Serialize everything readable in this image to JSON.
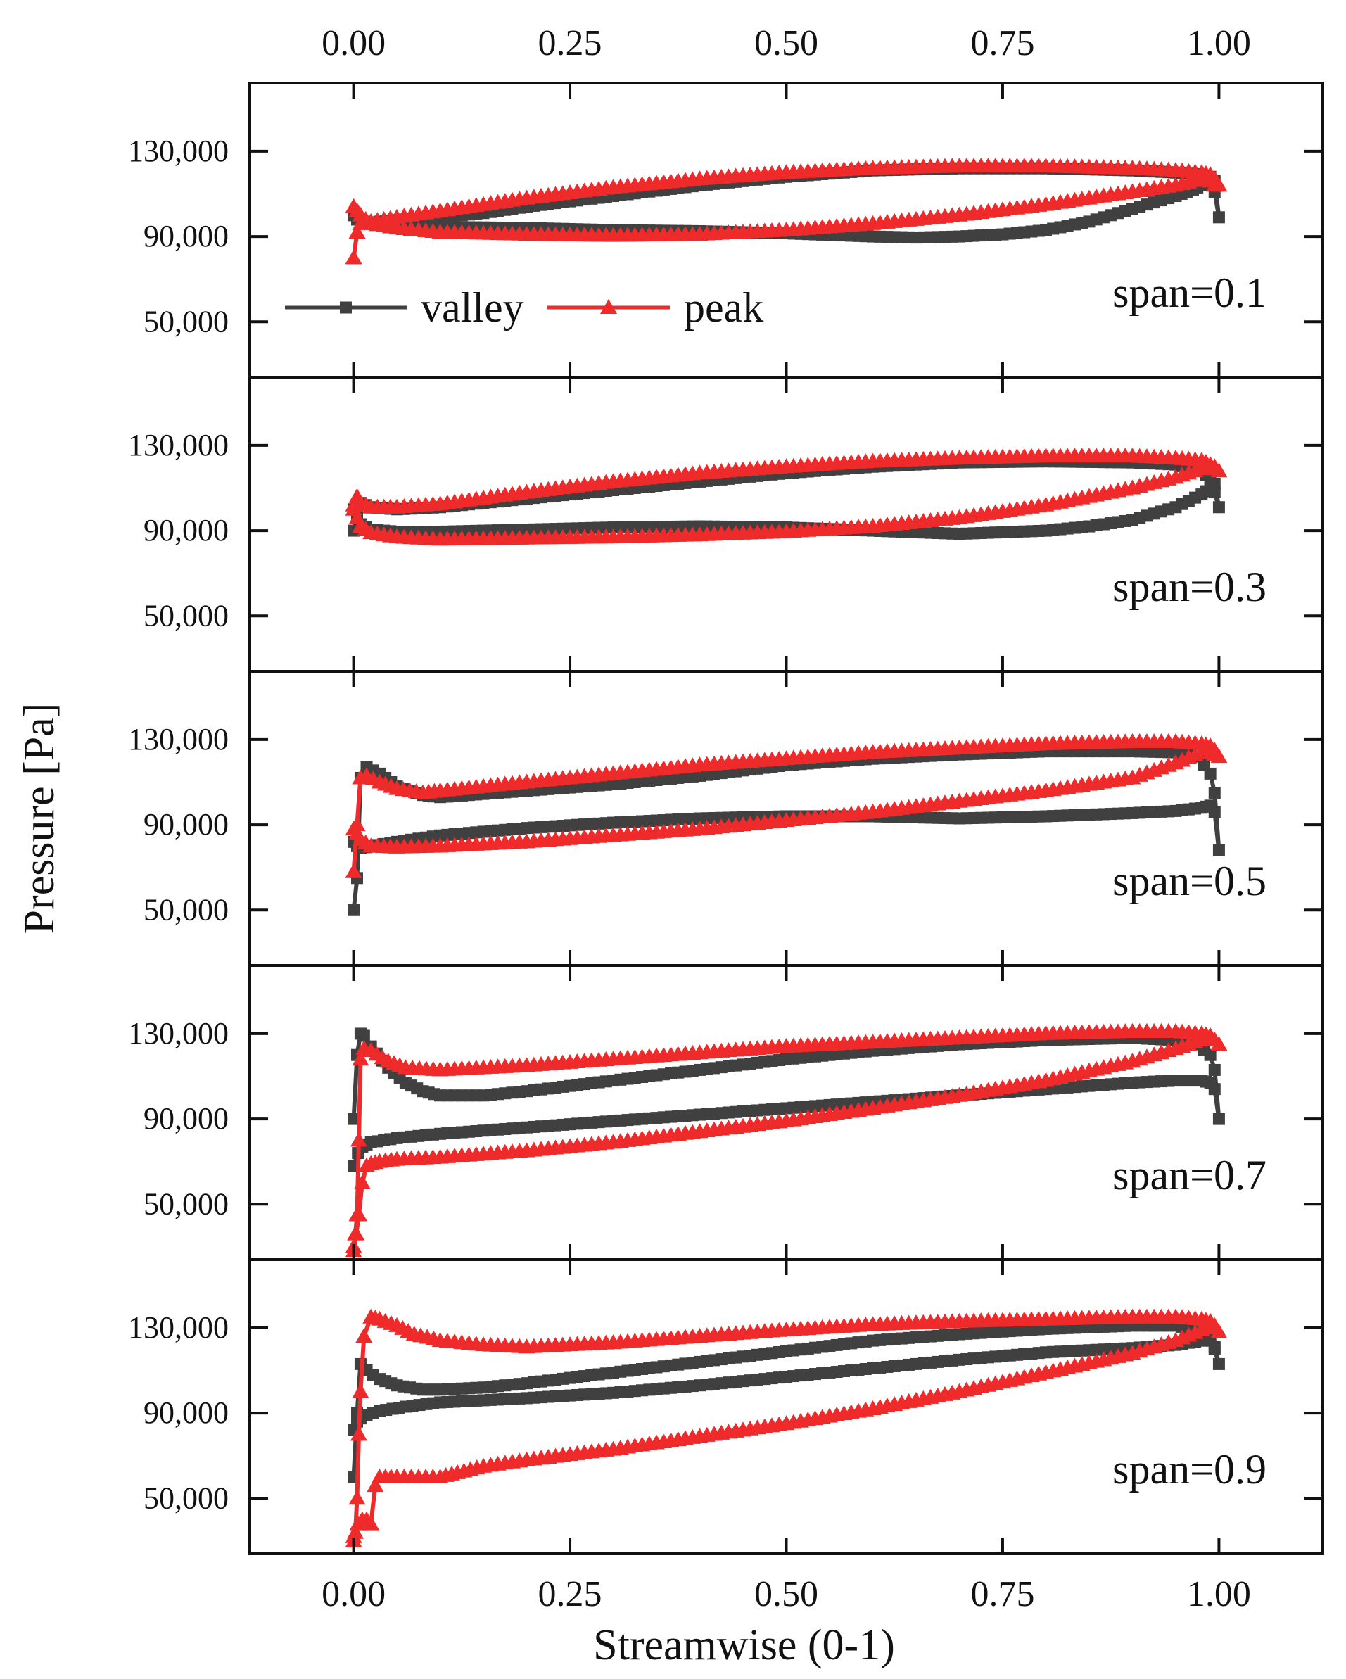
{
  "chart_data": {
    "type": "line",
    "xlabel": "Streamwise (0-1)",
    "ylabel": "Pressure [Pa]",
    "xlim": [
      -0.12,
      1.12
    ],
    "ylim": [
      24000,
      162000
    ],
    "xticks": [
      0.0,
      0.25,
      0.5,
      0.75,
      1.0
    ],
    "xtick_labels": [
      "0.00",
      "0.25",
      "0.50",
      "0.75",
      "1.00"
    ],
    "yticks": [
      50000,
      90000,
      130000
    ],
    "ytick_labels": [
      "50,000",
      "90,000",
      "130,000"
    ],
    "grid": false,
    "legend": {
      "placement": "inside-left of top panel",
      "entries": [
        {
          "name": "valley",
          "color": "#404040",
          "marker": "square"
        },
        {
          "name": "peak",
          "color": "#ee2a2a",
          "marker": "triangle"
        }
      ]
    },
    "colors": {
      "valley": "#404040",
      "peak": "#ee2a2a"
    },
    "panels": [
      {
        "label": "span=0.1",
        "series": [
          {
            "name": "valley",
            "x": [
              0.0,
              0.004,
              0.008,
              0.01,
              0.03,
              0.06,
              0.1,
              0.15,
              0.2,
              0.3,
              0.4,
              0.5,
              0.6,
              0.7,
              0.8,
              0.9,
              0.95,
              0.98,
              0.99,
              0.995,
              1.0,
              0.995,
              0.99,
              0.98,
              0.97,
              0.95,
              0.9,
              0.85,
              0.8,
              0.75,
              0.7,
              0.65,
              0.6,
              0.5,
              0.4,
              0.3,
              0.2,
              0.1,
              0.05,
              0.02,
              0.008,
              0.004,
              0.0
            ],
            "y": [
              100000,
              98000,
              96000,
              96000,
              97000,
              98000,
              99000,
              101000,
              104000,
              109000,
              114000,
              118000,
              121000,
              122000,
              122000,
              121000,
              120000,
              119000,
              118000,
              116000,
              99000,
              111000,
              114000,
              114000,
              112000,
              109000,
              103000,
              97000,
              93000,
              91000,
              90000,
              89500,
              90000,
              91500,
              92500,
              93000,
              94000,
              94500,
              95000,
              96000,
              97000,
              98000,
              100000
            ]
          },
          {
            "name": "peak",
            "x": [
              0.0,
              0.004,
              0.008,
              0.02,
              0.05,
              0.1,
              0.15,
              0.2,
              0.3,
              0.4,
              0.5,
              0.6,
              0.7,
              0.8,
              0.9,
              0.95,
              0.98,
              0.99,
              0.995,
              1.0,
              0.995,
              0.99,
              0.98,
              0.95,
              0.9,
              0.85,
              0.8,
              0.7,
              0.6,
              0.5,
              0.4,
              0.3,
              0.2,
              0.1,
              0.05,
              0.02,
              0.008,
              0.004,
              0.0
            ],
            "y": [
              80000,
              92000,
              96000,
              97000,
              99000,
              102000,
              105000,
              108000,
              113000,
              117000,
              120000,
              122000,
              123000,
              123000,
              122000,
              121000,
              120000,
              119000,
              117000,
              114000,
              114000,
              116000,
              117000,
              114000,
              111000,
              108000,
              105000,
              100000,
              96000,
              93000,
              91000,
              90500,
              91000,
              92000,
              94000,
              96000,
              100000,
              102000,
              104000
            ]
          }
        ]
      },
      {
        "label": "span=0.3",
        "series": [
          {
            "name": "valley",
            "x": [
              0.0,
              0.004,
              0.008,
              0.02,
              0.05,
              0.1,
              0.2,
              0.3,
              0.4,
              0.5,
              0.6,
              0.7,
              0.8,
              0.9,
              0.95,
              0.98,
              0.99,
              0.995,
              1.0,
              0.995,
              0.99,
              0.98,
              0.95,
              0.9,
              0.85,
              0.8,
              0.7,
              0.6,
              0.5,
              0.4,
              0.3,
              0.2,
              0.1,
              0.05,
              0.02,
              0.008,
              0.004,
              0.0
            ],
            "y": [
              90000,
              100000,
              103000,
              101000,
              100000,
              101000,
              105000,
              109000,
              113000,
              117000,
              120000,
              122000,
              122500,
              122000,
              121000,
              118000,
              114000,
              112000,
              101000,
              108000,
              110000,
              107000,
              101000,
              95000,
              92000,
              90000,
              88500,
              90000,
              91500,
              92000,
              91500,
              90500,
              89500,
              89500,
              90500,
              93000,
              96000,
              100000
            ]
          },
          {
            "name": "peak",
            "x": [
              0.0,
              0.004,
              0.008,
              0.02,
              0.05,
              0.1,
              0.2,
              0.3,
              0.4,
              0.5,
              0.6,
              0.7,
              0.8,
              0.9,
              0.95,
              0.98,
              0.99,
              0.995,
              1.0,
              0.995,
              0.99,
              0.98,
              0.95,
              0.9,
              0.8,
              0.7,
              0.6,
              0.5,
              0.4,
              0.3,
              0.2,
              0.1,
              0.05,
              0.02,
              0.008,
              0.004,
              0.0
            ],
            "y": [
              102000,
              106000,
              103000,
              101000,
              101000,
              102500,
              108000,
              113000,
              117000,
              120000,
              122500,
              124000,
              125000,
              125000,
              124000,
              123000,
              121000,
              120000,
              118000,
              119000,
              120000,
              119000,
              115000,
              110000,
              102000,
              96000,
              92000,
              89500,
              88000,
              87000,
              86500,
              86000,
              87000,
              89000,
              92000,
              96000,
              100000
            ]
          }
        ]
      },
      {
        "label": "span=0.5",
        "series": [
          {
            "name": "valley",
            "x": [
              0.0,
              0.004,
              0.008,
              0.015,
              0.03,
              0.05,
              0.08,
              0.1,
              0.2,
              0.3,
              0.4,
              0.5,
              0.6,
              0.7,
              0.8,
              0.9,
              0.95,
              0.975,
              0.99,
              0.995,
              1.0,
              0.995,
              0.99,
              0.98,
              0.95,
              0.9,
              0.8,
              0.7,
              0.6,
              0.5,
              0.4,
              0.3,
              0.2,
              0.1,
              0.05,
              0.02,
              0.008,
              0.004,
              0.0
            ],
            "y": [
              50000,
              65000,
              112000,
              117000,
              114000,
              108000,
              104000,
              103000,
              106000,
              109000,
              113000,
              118000,
              121000,
              123000,
              124500,
              124500,
              124000,
              122000,
              114000,
              105000,
              78000,
              96000,
              99000,
              98000,
              96500,
              95500,
              94000,
              93000,
              94000,
              94000,
              93000,
              91000,
              88500,
              85000,
              82000,
              80000,
              79000,
              80000,
              82000
            ]
          },
          {
            "name": "peak",
            "x": [
              0.0,
              0.004,
              0.008,
              0.015,
              0.03,
              0.05,
              0.08,
              0.1,
              0.2,
              0.3,
              0.4,
              0.5,
              0.6,
              0.7,
              0.8,
              0.9,
              0.95,
              0.98,
              0.99,
              0.995,
              1.0,
              0.995,
              0.99,
              0.98,
              0.95,
              0.9,
              0.8,
              0.7,
              0.6,
              0.5,
              0.4,
              0.3,
              0.2,
              0.1,
              0.05,
              0.02,
              0.008,
              0.004,
              0.0
            ],
            "y": [
              68000,
              90000,
              112000,
              113000,
              110000,
              107000,
              105000,
              106000,
              110000,
              114000,
              118000,
              121000,
              124000,
              126000,
              128000,
              129000,
              129000,
              128000,
              127000,
              125000,
              122000,
              123000,
              124500,
              124000,
              119000,
              112000,
              106000,
              101000,
              96000,
              92000,
              88000,
              85000,
              82000,
              80000,
              79500,
              80000,
              83000,
              86000,
              88000
            ]
          }
        ]
      },
      {
        "label": "span=0.7",
        "series": [
          {
            "name": "valley",
            "x": [
              0.0,
              0.004,
              0.008,
              0.012,
              0.02,
              0.04,
              0.06,
              0.08,
              0.1,
              0.15,
              0.2,
              0.3,
              0.4,
              0.5,
              0.6,
              0.7,
              0.8,
              0.9,
              0.95,
              0.975,
              0.99,
              0.995,
              1.0,
              0.995,
              0.99,
              0.98,
              0.95,
              0.9,
              0.8,
              0.7,
              0.6,
              0.5,
              0.4,
              0.3,
              0.2,
              0.1,
              0.05,
              0.02,
              0.01,
              0.005,
              0.0
            ],
            "y": [
              90000,
              120000,
              130000,
              129000,
              124000,
              114000,
              107000,
              103000,
              101000,
              101000,
              103000,
              108000,
              113000,
              118000,
              122000,
              125000,
              127000,
              128000,
              127000,
              125000,
              120000,
              113000,
              90000,
              104000,
              107000,
              108000,
              108000,
              107000,
              104000,
              101000,
              98000,
              95000,
              92000,
              89000,
              86000,
              83000,
              81000,
              79000,
              77000,
              74000,
              68000
            ]
          },
          {
            "name": "peak",
            "x": [
              0.0,
              0.002,
              0.004,
              0.006,
              0.008,
              0.012,
              0.02,
              0.04,
              0.06,
              0.1,
              0.2,
              0.3,
              0.4,
              0.5,
              0.6,
              0.7,
              0.8,
              0.9,
              0.95,
              0.98,
              0.99,
              0.995,
              1.0,
              0.995,
              0.99,
              0.98,
              0.95,
              0.9,
              0.8,
              0.7,
              0.6,
              0.5,
              0.4,
              0.3,
              0.2,
              0.1,
              0.05,
              0.03,
              0.02,
              0.015,
              0.01,
              0.006,
              0.003,
              0.0
            ],
            "y": [
              30000,
              36000,
              45000,
              80000,
              118000,
              123000,
              122000,
              117000,
              114000,
              113000,
              115000,
              118000,
              121000,
              124000,
              126000,
              128000,
              130000,
              131000,
              131000,
              130000,
              129000,
              127000,
              125000,
              127000,
              128000,
              127000,
              123000,
              117000,
              108000,
              101000,
              95000,
              89000,
              84000,
              79000,
              75000,
              72000,
              71000,
              70000,
              69000,
              68000,
              60000,
              45000,
              36000,
              28000
            ]
          }
        ]
      },
      {
        "label": "span=0.9",
        "series": [
          {
            "name": "valley",
            "x": [
              0.0,
              0.004,
              0.008,
              0.015,
              0.03,
              0.05,
              0.08,
              0.1,
              0.15,
              0.2,
              0.3,
              0.4,
              0.5,
              0.6,
              0.7,
              0.8,
              0.9,
              0.95,
              0.98,
              0.99,
              0.995,
              1.0,
              0.995,
              0.99,
              0.98,
              0.95,
              0.9,
              0.8,
              0.7,
              0.6,
              0.5,
              0.4,
              0.3,
              0.2,
              0.15,
              0.1,
              0.06,
              0.03,
              0.015,
              0.008,
              0.004,
              0.0
            ],
            "y": [
              60000,
              90000,
              113000,
              110000,
              106000,
              103000,
              101000,
              101000,
              102000,
              104000,
              109000,
              114000,
              119000,
              124000,
              127000,
              129500,
              131000,
              131000,
              129000,
              125000,
              120000,
              113000,
              121000,
              124000,
              124000,
              122000,
              120500,
              118500,
              115000,
              111000,
              107000,
              103000,
              99500,
              97000,
              96000,
              95000,
              93000,
              91000,
              89000,
              87500,
              86000,
              82000
            ]
          },
          {
            "name": "peak",
            "x": [
              0.0,
              0.002,
              0.004,
              0.006,
              0.008,
              0.012,
              0.02,
              0.03,
              0.05,
              0.07,
              0.1,
              0.15,
              0.2,
              0.3,
              0.4,
              0.5,
              0.6,
              0.7,
              0.8,
              0.9,
              0.95,
              0.98,
              0.99,
              0.995,
              1.0,
              0.995,
              0.99,
              0.98,
              0.95,
              0.9,
              0.8,
              0.7,
              0.6,
              0.5,
              0.4,
              0.3,
              0.2,
              0.15,
              0.12,
              0.1,
              0.05,
              0.03,
              0.025,
              0.02,
              0.015,
              0.01,
              0.005,
              0.0
            ],
            "y": [
              30000,
              34000,
              50000,
              80000,
              100000,
              126000,
              135000,
              134000,
              131000,
              127000,
              124000,
              122000,
              121000,
              123000,
              126000,
              129000,
              131500,
              133000,
              134000,
              135000,
              135000,
              134000,
              133000,
              131000,
              128000,
              130000,
              131000,
              129000,
              124000,
              118000,
              109000,
              100000,
              92000,
              85000,
              79000,
              73000,
              68000,
              65000,
              62000,
              60000,
              60000,
              60000,
              56000,
              38000,
              40000,
              40000,
              38000,
              32000
            ]
          }
        ]
      }
    ]
  }
}
